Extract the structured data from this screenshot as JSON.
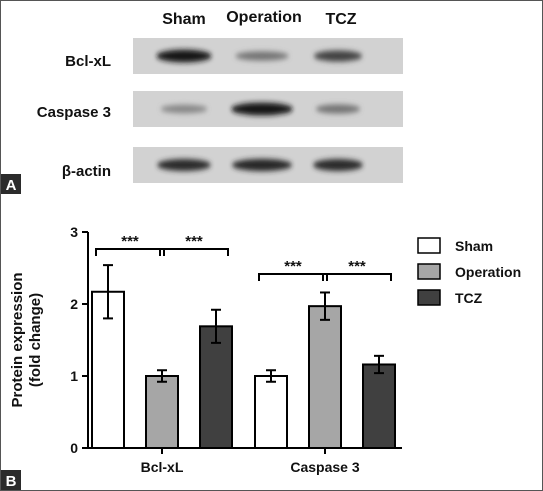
{
  "blot": {
    "lanes": [
      "Sham",
      "Operation",
      "TCZ"
    ],
    "rows": [
      {
        "label": "Bcl-xL",
        "intensity": [
          0.95,
          0.45,
          0.72
        ]
      },
      {
        "label": "Caspase 3",
        "intensity": [
          0.35,
          0.98,
          0.45
        ]
      },
      {
        "label": "β-actin",
        "intensity": [
          0.85,
          0.88,
          0.85
        ]
      }
    ],
    "panel_letter": "A"
  },
  "chart_data": {
    "type": "bar",
    "panel_letter": "B",
    "categories": [
      "Bcl-xL",
      "Caspase 3"
    ],
    "series": [
      {
        "name": "Sham",
        "color": "#ffffff",
        "values": [
          2.17,
          1.0
        ],
        "errors": [
          0.37,
          0.08
        ]
      },
      {
        "name": "Operation",
        "color": "#a6a6a6",
        "values": [
          1.0,
          1.97
        ],
        "errors": [
          0.08,
          0.19
        ]
      },
      {
        "name": "TCZ",
        "color": "#404040",
        "values": [
          1.69,
          1.16
        ],
        "errors": [
          0.23,
          0.12
        ]
      }
    ],
    "ylabel_lines": [
      "Protein expression",
      "(fold change)"
    ],
    "xlabel": "",
    "ylim": [
      0,
      3
    ],
    "yticks": [
      "0",
      "1",
      "2",
      "3"
    ],
    "significance": [
      {
        "label": "***",
        "category": 0,
        "from": 0,
        "to": 1
      },
      {
        "label": "***",
        "category": 0,
        "from": 1,
        "to": 2
      },
      {
        "label": "***",
        "category": 1,
        "from": 0,
        "to": 1
      },
      {
        "label": "***",
        "category": 1,
        "from": 1,
        "to": 2
      }
    ],
    "legend_position": "top-right",
    "grid": false
  }
}
